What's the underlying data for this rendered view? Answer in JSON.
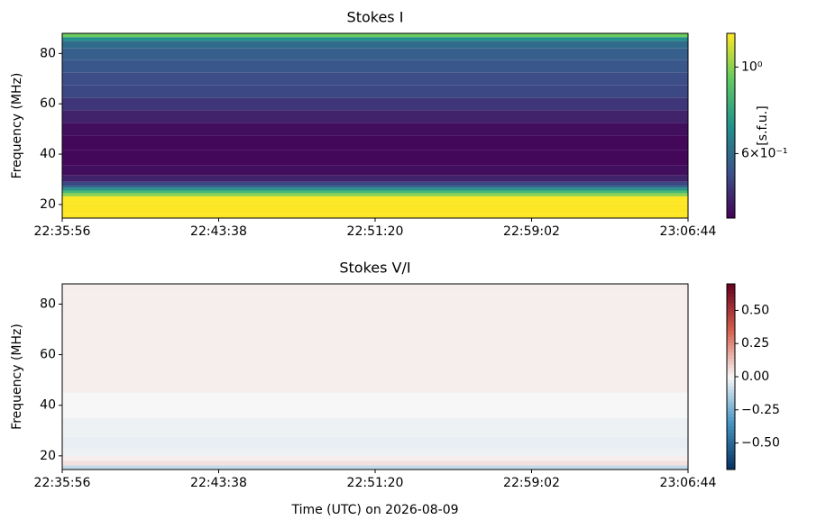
{
  "chart_data": [
    {
      "type": "heatmap",
      "title": "Stokes I",
      "ylabel": "Frequency (MHz)",
      "xlim": [
        81356,
        83204
      ],
      "xticks": [
        {
          "value": 81356,
          "label": "22:35:56"
        },
        {
          "value": 81818,
          "label": "22:43:38"
        },
        {
          "value": 82280,
          "label": "22:51:20"
        },
        {
          "value": 82742,
          "label": "22:59:02"
        },
        {
          "value": 83204,
          "label": "23:06:44"
        }
      ],
      "ylim": [
        14.6,
        88
      ],
      "yticks": [
        20,
        40,
        60,
        80
      ],
      "frequencies": [
        15.5,
        17,
        19,
        21,
        22.5,
        24,
        25,
        26,
        27,
        28,
        30,
        33,
        38,
        45,
        50,
        55,
        60,
        65,
        70,
        75,
        80,
        84,
        86,
        87
      ],
      "values": [
        1.3,
        1.3,
        1.3,
        1.3,
        1.25,
        1.0,
        0.85,
        0.72,
        0.6,
        0.52,
        0.46,
        0.43,
        0.42,
        0.42,
        0.43,
        0.46,
        0.49,
        0.52,
        0.53,
        0.55,
        0.57,
        0.6,
        0.7,
        0.95
      ],
      "colormap": "viridis",
      "colorbar": {
        "label": "[s.f.u.]",
        "scale": "log",
        "lim": [
          0.41,
          1.22
        ],
        "ticks": [
          {
            "value": 1,
            "label": "10⁰"
          },
          {
            "value": 0.6,
            "label": "6×10⁻¹"
          }
        ]
      }
    },
    {
      "type": "heatmap",
      "title": "Stokes V/I",
      "ylabel": "Frequency (MHz)",
      "xlabel": "Time (UTC) on 2026-08-09",
      "xlim": [
        81356,
        83204
      ],
      "xticks": [
        {
          "value": 81356,
          "label": "22:35:56"
        },
        {
          "value": 81818,
          "label": "22:43:38"
        },
        {
          "value": 82280,
          "label": "22:51:20"
        },
        {
          "value": 82742,
          "label": "22:59:02"
        },
        {
          "value": 83204,
          "label": "23:06:44"
        }
      ],
      "ylim": [
        14.6,
        88
      ],
      "yticks": [
        20,
        40,
        60,
        80
      ],
      "frequencies": [
        15.5,
        17,
        19,
        21,
        25,
        30,
        40,
        50,
        60,
        70,
        80,
        87
      ],
      "values": [
        -0.1,
        0.05,
        0.02,
        -0.02,
        -0.03,
        -0.02,
        0.0,
        0.02,
        0.02,
        0.02,
        0.02,
        0.02
      ],
      "colormap": "RdBu_r",
      "colorbar": {
        "scale": "linear",
        "lim": [
          -0.7,
          0.7
        ],
        "ticks": [
          {
            "value": 0.5,
            "label": "0.50"
          },
          {
            "value": 0.25,
            "label": "0.25"
          },
          {
            "value": 0,
            "label": "0.00"
          },
          {
            "value": -0.25,
            "label": "−0.25"
          },
          {
            "value": -0.5,
            "label": "−0.50"
          }
        ]
      }
    }
  ]
}
